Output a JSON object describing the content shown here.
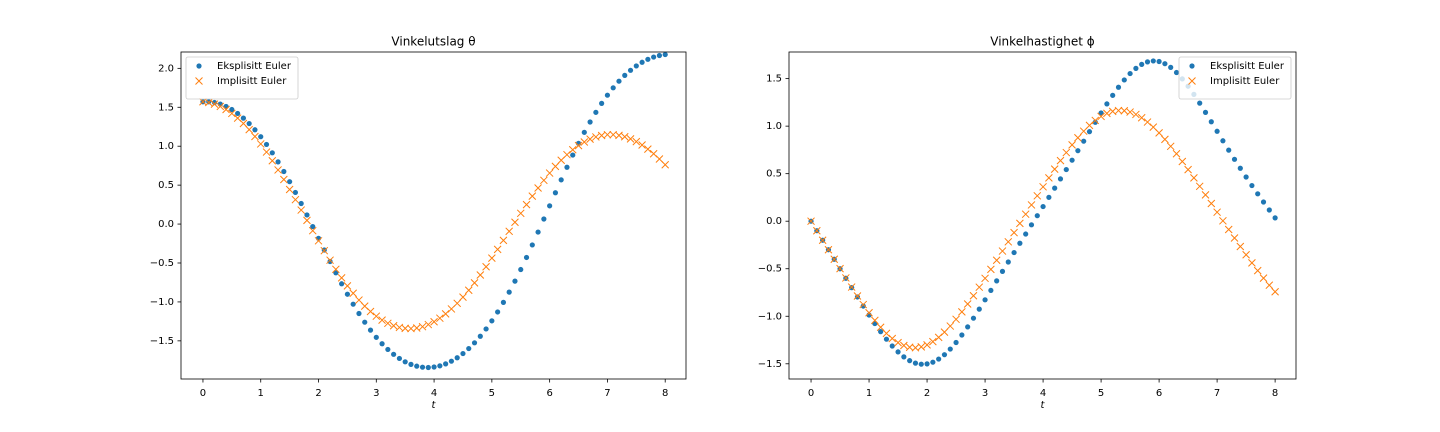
{
  "chart_data": [
    {
      "type": "scatter",
      "title": "Vinkelutslag θ",
      "x_label": "t",
      "legend": "upper left",
      "grid": false,
      "x": [
        0,
        0.1,
        0.2,
        0.3,
        0.4,
        0.5,
        0.6,
        0.7,
        0.8,
        0.9,
        1,
        1.1,
        1.2,
        1.3,
        1.4,
        1.5,
        1.6,
        1.7,
        1.8,
        1.9,
        2,
        2.1,
        2.2,
        2.3,
        2.4,
        2.5,
        2.6,
        2.7,
        2.8,
        2.9,
        3,
        3.1,
        3.2,
        3.3,
        3.4,
        3.5,
        3.6,
        3.7,
        3.8,
        3.9,
        4,
        4.1,
        4.2,
        4.3,
        4.4,
        4.5,
        4.6,
        4.7,
        4.8,
        4.9,
        5,
        5.1,
        5.2,
        5.3,
        5.4,
        5.5,
        5.6,
        5.7,
        5.8,
        5.9,
        6,
        6.1,
        6.2,
        6.3,
        6.4,
        6.5,
        6.6,
        6.7,
        6.8,
        6.9,
        7,
        7.1,
        7.2,
        7.3,
        7.4,
        7.5,
        7.6,
        7.7,
        7.8,
        7.9,
        8
      ],
      "xlim": [
        -0.38,
        8.36
      ],
      "xticks": [
        0,
        1,
        2,
        3,
        4,
        5,
        6,
        7,
        8
      ],
      "ylim": [
        -1.99,
        2.21
      ],
      "yticks": [
        {
          "value": -1.5,
          "label": "−1.5"
        },
        {
          "value": -1.0,
          "label": "−1.0"
        },
        {
          "value": -0.5,
          "label": "−0.5"
        },
        {
          "value": 0,
          "label": "0.0"
        },
        0.5,
        {
          "value": 1.0,
          "label": "1.0"
        },
        1.5,
        {
          "value": 2.0,
          "label": "2.0"
        }
      ],
      "series": [
        {
          "name": "Eksplisitt Euler",
          "color": "#1f77b4",
          "marker": "dot",
          "values": [
            1.571,
            1.571,
            1.561,
            1.541,
            1.511,
            1.471,
            1.421,
            1.361,
            1.291,
            1.211,
            1.122,
            1.023,
            0.915,
            0.799,
            0.675,
            0.544,
            0.406,
            0.264,
            0.117,
            -0.032,
            -0.183,
            -0.333,
            -0.481,
            -0.626,
            -0.767,
            -0.901,
            -1.029,
            -1.149,
            -1.26,
            -1.362,
            -1.455,
            -1.537,
            -1.61,
            -1.673,
            -1.726,
            -1.769,
            -1.802,
            -1.825,
            -1.838,
            -1.842,
            -1.836,
            -1.821,
            -1.796,
            -1.761,
            -1.717,
            -1.663,
            -1.599,
            -1.525,
            -1.441,
            -1.347,
            -1.243,
            -1.129,
            -1.006,
            -0.874,
            -0.733,
            -0.584,
            -0.429,
            -0.268,
            -0.103,
            0.065,
            0.234,
            0.402,
            0.568,
            0.73,
            0.886,
            1.036,
            1.178,
            1.311,
            1.435,
            1.55,
            1.655,
            1.75,
            1.835,
            1.91,
            1.975,
            2.031,
            2.078,
            2.116,
            2.145,
            2.165,
            2.177
          ]
        },
        {
          "name": "Implisitt Euler",
          "color": "#ff7f0e",
          "marker": "x",
          "values": [
            1.571,
            1.561,
            1.541,
            1.511,
            1.471,
            1.421,
            1.361,
            1.292,
            1.213,
            1.125,
            1.029,
            0.925,
            0.813,
            0.695,
            0.572,
            0.444,
            0.313,
            0.18,
            0.047,
            -0.085,
            -0.215,
            -0.342,
            -0.464,
            -0.581,
            -0.691,
            -0.794,
            -0.889,
            -0.976,
            -1.054,
            -1.123,
            -1.183,
            -1.234,
            -1.275,
            -1.306,
            -1.328,
            -1.34,
            -1.342,
            -1.335,
            -1.318,
            -1.291,
            -1.255,
            -1.209,
            -1.154,
            -1.09,
            -1.018,
            -0.938,
            -0.85,
            -0.755,
            -0.654,
            -0.548,
            -0.438,
            -0.325,
            -0.209,
            -0.093,
            0.023,
            0.138,
            0.25,
            0.359,
            0.463,
            0.562,
            0.655,
            0.741,
            0.82,
            0.891,
            0.954,
            1.008,
            1.054,
            1.091,
            1.119,
            1.138,
            1.148,
            1.148,
            1.139,
            1.121,
            1.094,
            1.059,
            1.015,
            0.963,
            0.903,
            0.836,
            0.762
          ]
        }
      ]
    },
    {
      "type": "scatter",
      "title": "Vinkelhastighet ϕ",
      "x_label": "t",
      "legend": "upper right",
      "grid": false,
      "x": [
        0,
        0.1,
        0.2,
        0.3,
        0.4,
        0.5,
        0.6,
        0.7,
        0.8,
        0.9,
        1,
        1.1,
        1.2,
        1.3,
        1.4,
        1.5,
        1.6,
        1.7,
        1.8,
        1.9,
        2,
        2.1,
        2.2,
        2.3,
        2.4,
        2.5,
        2.6,
        2.7,
        2.8,
        2.9,
        3,
        3.1,
        3.2,
        3.3,
        3.4,
        3.5,
        3.6,
        3.7,
        3.8,
        3.9,
        4,
        4.1,
        4.2,
        4.3,
        4.4,
        4.5,
        4.6,
        4.7,
        4.8,
        4.9,
        5,
        5.1,
        5.2,
        5.3,
        5.4,
        5.5,
        5.6,
        5.7,
        5.8,
        5.9,
        6,
        6.1,
        6.2,
        6.3,
        6.4,
        6.5,
        6.6,
        6.7,
        6.8,
        6.9,
        7,
        7.1,
        7.2,
        7.3,
        7.4,
        7.5,
        7.6,
        7.7,
        7.8,
        7.9,
        8
      ],
      "xlim": [
        -0.38,
        8.36
      ],
      "xticks": [
        0,
        1,
        2,
        3,
        4,
        5,
        6,
        7,
        8
      ],
      "ylim": [
        -1.66,
        1.78
      ],
      "yticks": [
        {
          "value": -1.5,
          "label": "−1.5"
        },
        {
          "value": -1.0,
          "label": "−1.0"
        },
        {
          "value": -0.5,
          "label": "−0.5"
        },
        {
          "value": 0,
          "label": "0.0"
        },
        0.5,
        {
          "value": 1.0,
          "label": "1.0"
        },
        1.5
      ],
      "series": [
        {
          "name": "Eksplisitt Euler",
          "color": "#1f77b4",
          "marker": "dot",
          "values": [
            0,
            -0.1,
            -0.2,
            -0.3,
            -0.4,
            -0.5,
            -0.6,
            -0.699,
            -0.797,
            -0.893,
            -0.987,
            -1.077,
            -1.162,
            -1.241,
            -1.313,
            -1.375,
            -1.427,
            -1.467,
            -1.493,
            -1.504,
            -1.501,
            -1.483,
            -1.45,
            -1.404,
            -1.345,
            -1.276,
            -1.197,
            -1.112,
            -1.02,
            -0.925,
            -0.827,
            -0.728,
            -0.628,
            -0.528,
            -0.429,
            -0.33,
            -0.232,
            -0.135,
            -0.038,
            0.058,
            0.154,
            0.251,
            0.348,
            0.445,
            0.543,
            0.642,
            0.742,
            0.842,
            0.942,
            1.041,
            1.139,
            1.234,
            1.324,
            1.409,
            1.486,
            1.553,
            1.608,
            1.65,
            1.676,
            1.686,
            1.68,
            1.657,
            1.618,
            1.564,
            1.497,
            1.42,
            1.334,
            1.242,
            1.145,
            1.046,
            0.946,
            0.846,
            0.748,
            0.651,
            0.557,
            0.465,
            0.375,
            0.288,
            0.202,
            0.118,
            0.035
          ]
        },
        {
          "name": "Implisitt Euler",
          "color": "#ff7f0e",
          "marker": "x",
          "values": [
            0,
            -0.1,
            -0.2,
            -0.3,
            -0.4,
            -0.499,
            -0.597,
            -0.693,
            -0.787,
            -0.877,
            -0.963,
            -1.043,
            -1.116,
            -1.18,
            -1.234,
            -1.277,
            -1.308,
            -1.326,
            -1.331,
            -1.322,
            -1.301,
            -1.267,
            -1.222,
            -1.167,
            -1.103,
            -1.032,
            -0.954,
            -0.871,
            -0.784,
            -0.694,
            -0.601,
            -0.507,
            -0.411,
            -0.314,
            -0.217,
            -0.12,
            -0.023,
            0.074,
            0.171,
            0.267,
            0.362,
            0.456,
            0.548,
            0.637,
            0.722,
            0.803,
            0.878,
            0.947,
            1.008,
            1.06,
            1.102,
            1.134,
            1.155,
            1.164,
            1.162,
            1.148,
            1.123,
            1.088,
            1.043,
            0.99,
            0.929,
            0.861,
            0.788,
            0.71,
            0.628,
            0.543,
            0.456,
            0.367,
            0.277,
            0.186,
            0.095,
            0.004,
            -0.087,
            -0.177,
            -0.266,
            -0.353,
            -0.438,
            -0.52,
            -0.599,
            -0.673,
            -0.742
          ]
        }
      ]
    }
  ]
}
